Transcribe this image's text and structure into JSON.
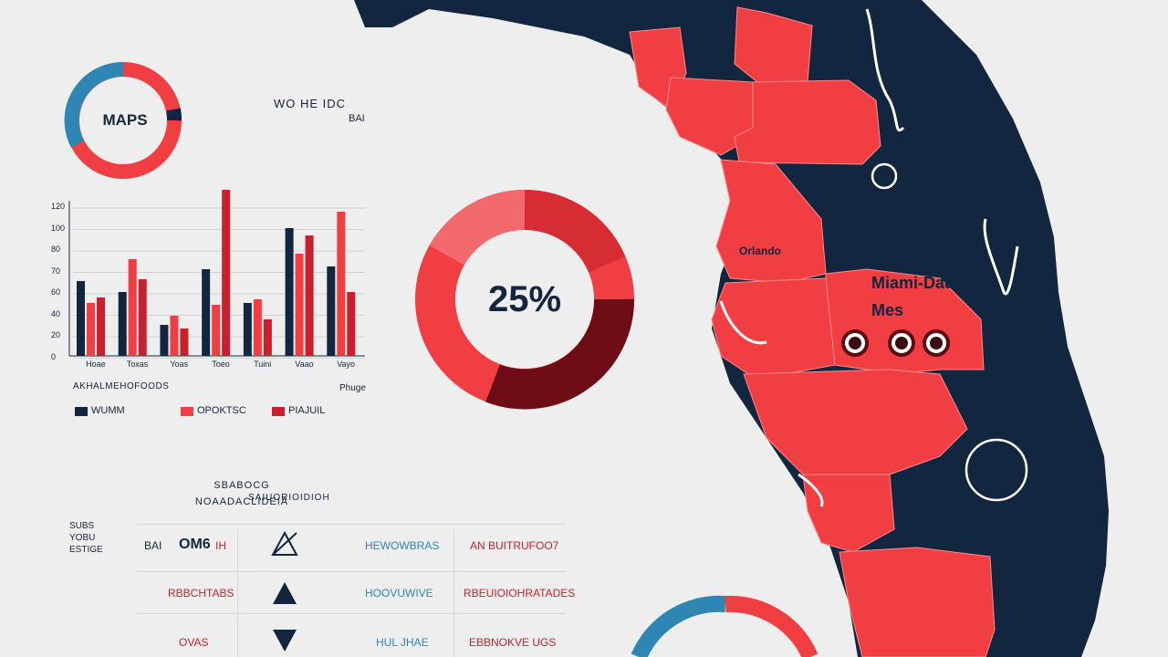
{
  "colors": {
    "navy": "#13263f",
    "red": "#f03e42",
    "crimson": "#c8202c",
    "blue": "#2e86b5",
    "dark_red": "#6e0d16",
    "pink": "#f26a6d",
    "background": "#eeeeee"
  },
  "top_donut": {
    "label": "MAPS",
    "blue_fraction": 0.32
  },
  "header_text": {
    "line1": "WO  HE  IDC",
    "line2": "BAI"
  },
  "center_donut": {
    "label": "25%",
    "percent": 25
  },
  "bar_chart": {
    "y_ticks": [
      "120",
      "100",
      "80",
      "70",
      "60",
      "40",
      "20",
      "0"
    ],
    "categories": [
      "Hoae",
      "Toxas",
      "Yoas",
      "Toeo",
      "Tuini",
      "Vaao",
      "Vayo"
    ],
    "axis_caption": "AKHALMEHOFOODS",
    "axis_caption_right": "Phuge",
    "legend": [
      "WUMM",
      "OPOKTSC",
      "PIAJUIL"
    ]
  },
  "chart_data": {
    "type": "bar",
    "title": "",
    "categories": [
      "Hoae",
      "Toxas",
      "Yoas",
      "Toeo",
      "Tuini",
      "Vaao",
      "Vayo"
    ],
    "series": [
      {
        "name": "WUMM",
        "values": [
          82,
          70,
          34,
          95,
          58,
          140,
          98
        ]
      },
      {
        "name": "OPOKTSC",
        "values": [
          58,
          106,
          44,
          56,
          62,
          112,
          158
        ]
      },
      {
        "name": "PIAJUIL",
        "values": [
          64,
          84,
          30,
          182,
          40,
          132,
          70
        ]
      }
    ],
    "ylim": [
      0,
      200
    ]
  },
  "map": {
    "label_a": "Miami-Dade",
    "label_b": "Mes",
    "label_small": "Orlando"
  },
  "table": {
    "headers": [
      "SBABOCG",
      "NOAADACLIDEIA"
    ],
    "headers_b": [
      "SAIUORIOIDIOH"
    ],
    "side": [
      "SUBS",
      "YOBU",
      "ESTIGE"
    ],
    "rows": [
      {
        "a": "BAI",
        "b": "OM6",
        "c": "IH",
        "icon": "triangle-outline-icon",
        "d": "HEWOWBRAS",
        "e": "AN BUITRUFOO7"
      },
      {
        "a": "RBBCHTABS",
        "b": "",
        "c": "",
        "icon": "triangle-up-icon",
        "d": "HOOVUWIVE",
        "e": "RBEUIOIOHRATADES"
      },
      {
        "a": "OVAS",
        "b": "",
        "c": "",
        "icon": "triangle-down-icon",
        "d": "HUL JHAE",
        "e": "EBBNOKVE UGS"
      }
    ]
  }
}
